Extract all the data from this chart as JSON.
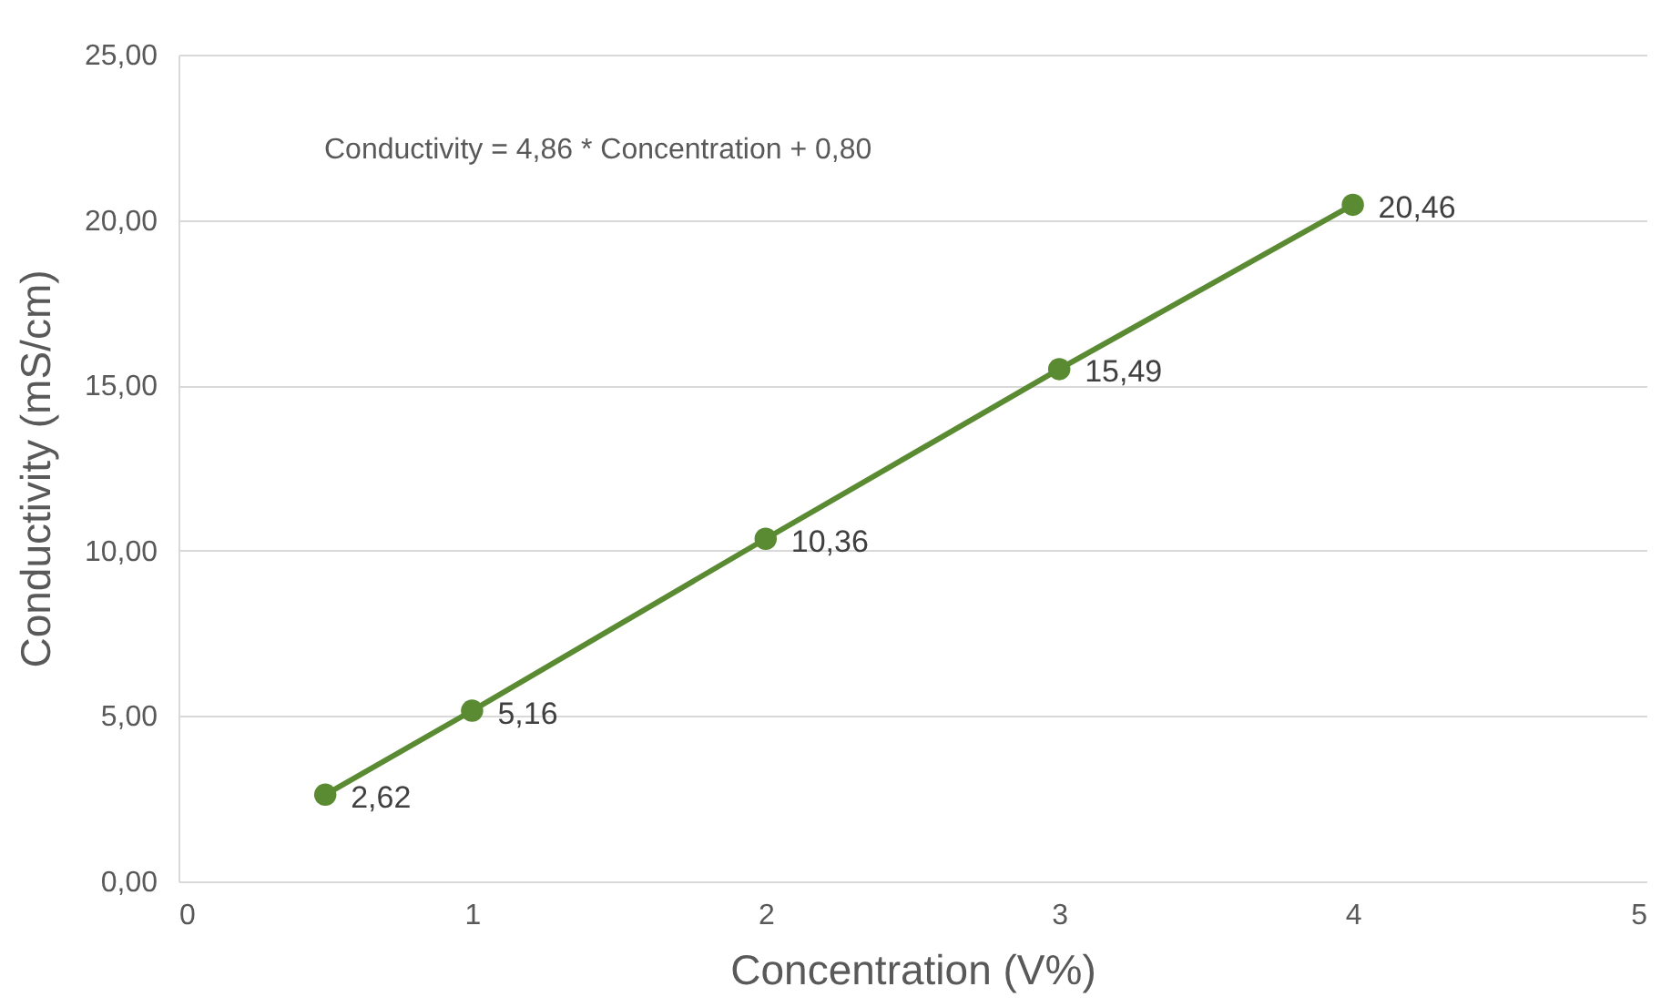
{
  "chart_data": {
    "type": "line",
    "xlabel": "Concentration (V%)",
    "ylabel": "Conductivity (mS/cm)",
    "x": [
      0.5,
      1,
      2,
      3,
      4
    ],
    "series": [
      {
        "color": "#5a8a32",
        "values": [
          2.62,
          5.16,
          10.36,
          15.49,
          20.46
        ],
        "value_labels": [
          "2,62",
          "5,16",
          "10,36",
          "15,49",
          "20,46"
        ]
      }
    ],
    "xlim": [
      0,
      5
    ],
    "xticks": [
      0,
      1,
      2,
      3,
      4,
      5
    ],
    "ylim": [
      0,
      25
    ],
    "yticks": [
      {
        "value": 0,
        "label": "0,00"
      },
      {
        "value": 5,
        "label": "5,00"
      },
      {
        "value": 10,
        "label": "10,00"
      },
      {
        "value": 15,
        "label": "15,00"
      },
      {
        "value": 20,
        "label": "20,00"
      },
      {
        "value": 25,
        "label": "25,00"
      }
    ],
    "grid": "y",
    "marker": "circle",
    "line_style": "solid",
    "annotations": [
      "Conductivity = 4,86 * Concentration + 0,80"
    ]
  }
}
